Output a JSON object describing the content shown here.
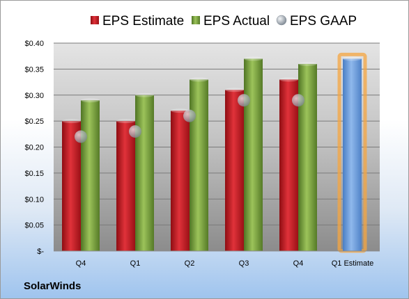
{
  "company": "SolarWinds",
  "chart_data": {
    "type": "bar",
    "categories": [
      "Q4",
      "Q1",
      "Q2",
      "Q3",
      "Q4",
      "Q1 Estimate"
    ],
    "y_tick_labels": [
      "$-",
      "$0.05",
      "$0.10",
      "$0.15",
      "$0.20",
      "$0.25",
      "$0.30",
      "$0.35",
      "$0.40"
    ],
    "ylim": [
      0,
      0.4
    ],
    "ytick_step": 0.05,
    "grid": true,
    "legend_position": "top",
    "series": [
      {
        "name": "EPS Estimate",
        "kind": "bar",
        "color": "#c0181e",
        "values": [
          0.25,
          0.25,
          0.27,
          0.31,
          0.33,
          null
        ]
      },
      {
        "name": "EPS Actual",
        "kind": "bar",
        "color": "#7aa13a",
        "values": [
          0.29,
          0.3,
          0.33,
          0.37,
          0.36,
          null
        ]
      },
      {
        "name": "EPS GAAP",
        "kind": "marker",
        "color": "#9aa3ad",
        "values": [
          0.22,
          0.23,
          0.26,
          0.29,
          0.29,
          null
        ]
      },
      {
        "name": "",
        "kind": "bar",
        "color": "#6f9ddb",
        "highlight": "#f5a640",
        "values": [
          null,
          null,
          null,
          null,
          null,
          0.37
        ]
      }
    ]
  }
}
